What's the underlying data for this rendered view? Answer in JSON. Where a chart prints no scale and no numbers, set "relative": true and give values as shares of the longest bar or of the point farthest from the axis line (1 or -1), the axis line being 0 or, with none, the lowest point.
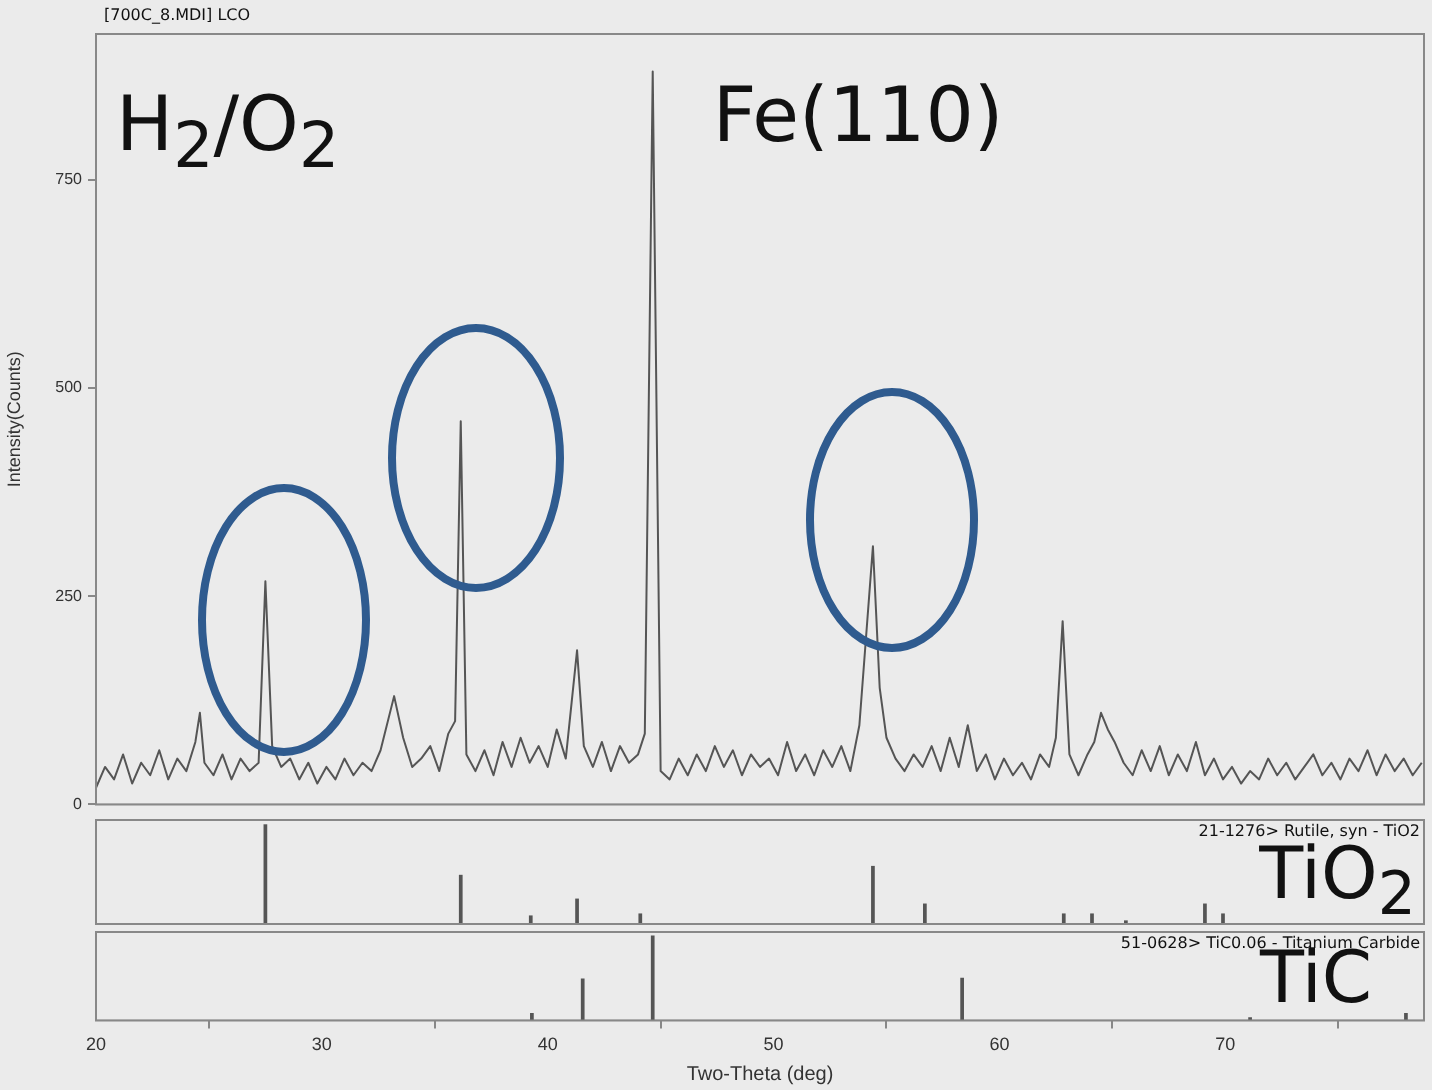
{
  "chart_data": [
    {
      "type": "line",
      "ylabel": "Intensity(Counts)",
      "color": "#555555",
      "xlim": [
        20,
        78.8
      ],
      "xticks": [
        20,
        30,
        40,
        50,
        60,
        70
      ],
      "ylim": [
        0,
        925
      ],
      "yticks": [
        0,
        250,
        500,
        750
      ],
      "tick_labels": "y",
      "grid": false,
      "legend": false,
      "marker": "none",
      "annotations": [
        "[700C_8.MDI] LCO",
        "H$_{2}$/O$_{2}$",
        {
          "text": "Fe(110)",
          "x": 44.65,
          "y": 880
        }
      ],
      "x": [
        20.0,
        20.4,
        20.8,
        21.2,
        21.6,
        22.0,
        22.4,
        22.8,
        23.2,
        23.6,
        24.0,
        24.4,
        24.6,
        24.8,
        25.2,
        25.6,
        26.0,
        26.4,
        26.8,
        27.2,
        27.5,
        27.8,
        28.2,
        28.6,
        29.0,
        29.4,
        29.8,
        30.2,
        30.6,
        31.0,
        31.4,
        31.8,
        32.2,
        32.6,
        33.2,
        33.6,
        34.0,
        34.4,
        34.8,
        35.2,
        35.6,
        35.9,
        36.15,
        36.4,
        36.8,
        37.2,
        37.6,
        38.0,
        38.4,
        38.8,
        39.2,
        39.6,
        40.0,
        40.4,
        40.8,
        41.3,
        41.6,
        42.0,
        42.4,
        42.8,
        43.2,
        43.6,
        44.0,
        44.3,
        44.65,
        45.0,
        45.4,
        45.8,
        46.2,
        46.6,
        47.0,
        47.4,
        47.8,
        48.2,
        48.6,
        49.0,
        49.4,
        49.8,
        50.2,
        50.6,
        51.0,
        51.4,
        51.8,
        52.2,
        52.6,
        53.0,
        53.4,
        53.8,
        54.4,
        54.7,
        55.0,
        55.4,
        55.8,
        56.2,
        56.6,
        57.0,
        57.4,
        57.8,
        58.2,
        58.6,
        59.0,
        59.4,
        59.8,
        60.2,
        60.6,
        61.0,
        61.4,
        61.8,
        62.2,
        62.5,
        62.8,
        63.1,
        63.5,
        63.9,
        64.2,
        64.5,
        64.8,
        65.1,
        65.5,
        65.9,
        66.3,
        66.7,
        67.1,
        67.5,
        67.9,
        68.3,
        68.7,
        69.1,
        69.5,
        69.9,
        70.3,
        70.7,
        71.1,
        71.5,
        71.9,
        72.3,
        72.7,
        73.1,
        73.5,
        73.9,
        74.3,
        74.7,
        75.1,
        75.5,
        75.9,
        76.3,
        76.7,
        77.1,
        77.5,
        77.9,
        78.3,
        78.7
      ],
      "values": [
        20,
        45,
        30,
        60,
        25,
        50,
        35,
        65,
        30,
        55,
        40,
        75,
        110,
        50,
        35,
        60,
        30,
        55,
        40,
        50,
        268,
        70,
        45,
        55,
        30,
        50,
        25,
        45,
        30,
        55,
        35,
        50,
        40,
        65,
        130,
        80,
        45,
        55,
        70,
        40,
        85,
        100,
        460,
        60,
        40,
        65,
        35,
        75,
        45,
        80,
        50,
        70,
        45,
        90,
        55,
        185,
        70,
        45,
        75,
        40,
        70,
        50,
        60,
        85,
        880,
        40,
        30,
        55,
        35,
        60,
        40,
        70,
        45,
        65,
        35,
        60,
        45,
        55,
        35,
        75,
        40,
        60,
        35,
        65,
        45,
        70,
        40,
        95,
        310,
        140,
        80,
        55,
        40,
        60,
        45,
        70,
        40,
        80,
        45,
        95,
        40,
        60,
        30,
        55,
        35,
        50,
        30,
        60,
        45,
        80,
        220,
        60,
        35,
        60,
        75,
        110,
        90,
        75,
        50,
        35,
        65,
        40,
        70,
        35,
        60,
        40,
        75,
        35,
        55,
        30,
        45,
        25,
        40,
        30,
        55,
        35,
        50,
        30,
        45,
        60,
        35,
        50,
        30,
        55,
        40,
        65,
        35,
        60,
        40,
        55,
        35,
        50
      ]
    },
    {
      "type": "bar",
      "relative": true,
      "color": "#555555",
      "xlim": [
        20,
        78.8
      ],
      "xticks": [
        20,
        30,
        40,
        50,
        60,
        70
      ],
      "tick_labels": false,
      "grid": false,
      "legend": false,
      "annotations": [
        "21-1276> Rutile, syn - TiO2",
        "TiO$_{2}$"
      ],
      "x": [
        27.5,
        36.15,
        39.25,
        41.3,
        44.1,
        54.4,
        56.7,
        62.85,
        64.1,
        65.6,
        69.1,
        69.9
      ],
      "values": [
        1,
        0.49,
        0.08,
        0.25,
        0.1,
        0.58,
        0.2,
        0.1,
        0.1,
        0.03,
        0.2,
        0.1
      ]
    },
    {
      "type": "bar",
      "relative": true,
      "color": "#555555",
      "xlabel": "Two-Theta (deg)",
      "xlim": [
        20,
        78.8
      ],
      "xticks": [
        20,
        30,
        40,
        50,
        60,
        70
      ],
      "tick_labels": "x",
      "grid": false,
      "legend": false,
      "annotations": [
        "51-0628> TiC0.06 - Titanium Carbide",
        "TiC"
      ],
      "x": [
        39.3,
        41.55,
        44.65,
        58.35,
        71.1,
        78.0
      ],
      "values": [
        0.08,
        0.49,
        1,
        0.5,
        0.03,
        0.08
      ]
    }
  ]
}
